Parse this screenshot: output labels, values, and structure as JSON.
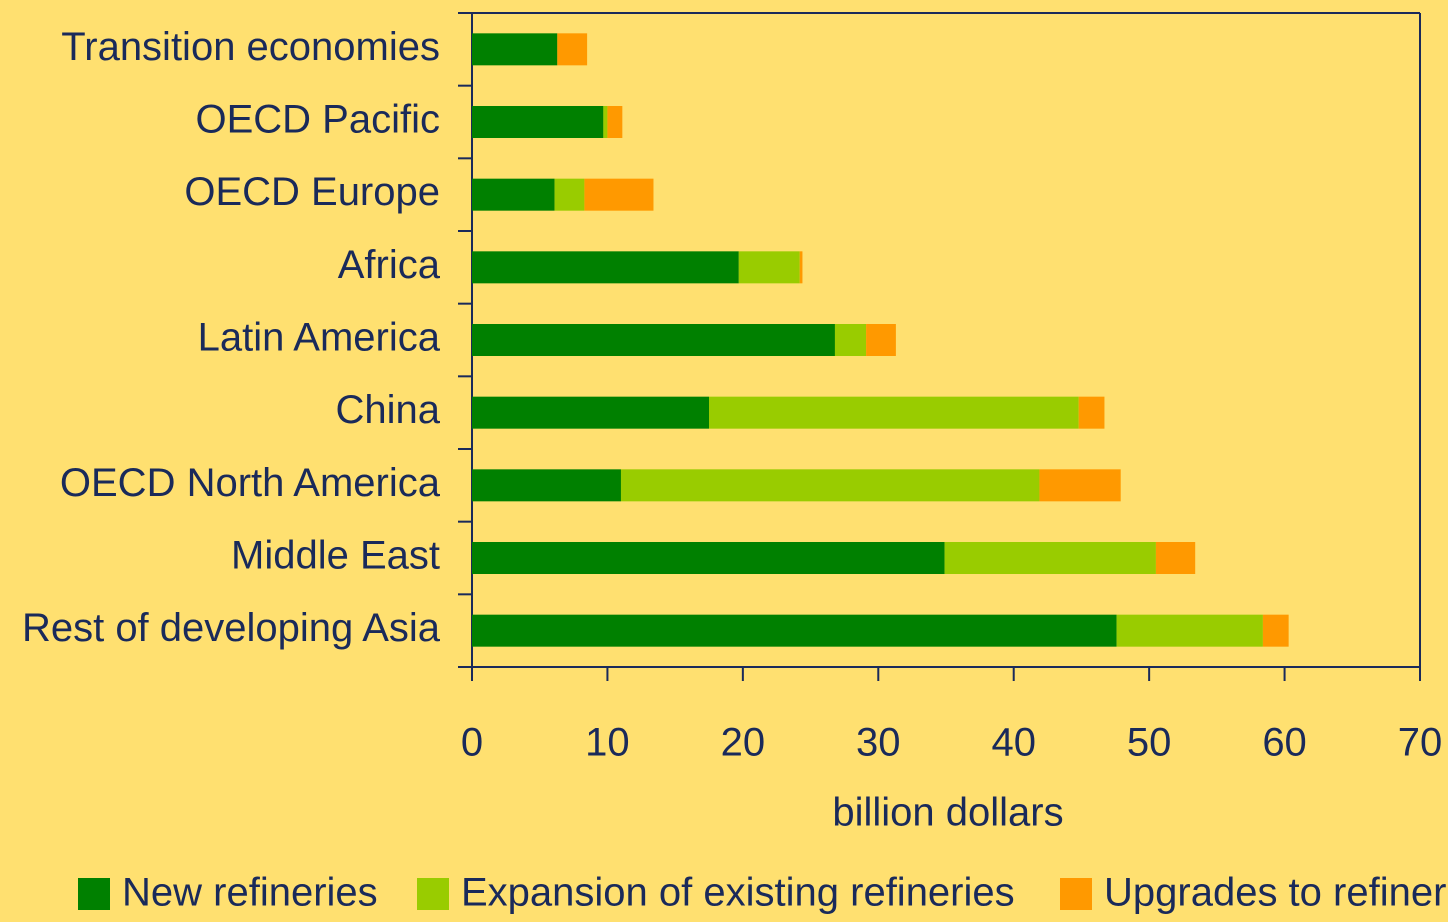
{
  "chart_data": {
    "type": "stacked-barh",
    "categories": [
      "Transition economies",
      "OECD Pacific",
      "OECD Europe",
      "Africa",
      "Latin America",
      "China",
      "OECD North America",
      "Middle East",
      "Rest of developing Asia"
    ],
    "series": [
      {
        "name": "New refineries",
        "color": "#008000",
        "values": [
          6.3,
          9.7,
          6.1,
          19.7,
          26.8,
          17.5,
          11.0,
          34.9,
          47.6
        ]
      },
      {
        "name": "Expansion of existing refineries",
        "color": "#99CC00",
        "values": [
          0,
          0.3,
          2.2,
          4.5,
          2.3,
          27.3,
          30.9,
          15.6,
          10.8
        ]
      },
      {
        "name": "Upgrades to refineries",
        "color": "#FF9900",
        "values": [
          2.2,
          1.1,
          5.1,
          0.2,
          2.2,
          1.9,
          6.0,
          2.9,
          1.9
        ]
      }
    ],
    "xlabel": "billion dollars",
    "xlim": [
      0,
      70
    ],
    "xticks": [
      0,
      10,
      20,
      30,
      40,
      50,
      60,
      70
    ],
    "legend": "bottom"
  }
}
